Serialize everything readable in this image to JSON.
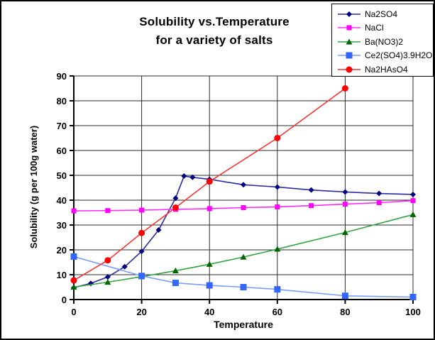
{
  "window": {
    "background_color": "#ffffff",
    "border_color": "#000000"
  },
  "chart_data": {
    "type": "line",
    "title": "Solubility vs.Temperature for a variety of salts",
    "title_lines": [
      "Solubility vs.Temperature",
      "for a variety of salts"
    ],
    "xlabel": "Temperature",
    "ylabel": "Solubility (g per 100g water)",
    "xlim": [
      0,
      100
    ],
    "ylim": [
      0,
      90
    ],
    "x_ticks": [
      0,
      20,
      40,
      60,
      80,
      100
    ],
    "y_ticks": [
      0,
      10,
      20,
      30,
      40,
      50,
      60,
      70,
      80,
      90
    ],
    "grid": true,
    "gridline_color": "#2a2a2a",
    "axis_color": "#000000",
    "legend_position": "top-right",
    "series": [
      {
        "name": "Na2SO4",
        "marker": "diamond",
        "marker_size": 8,
        "color": "#000080",
        "line_color": "#2b2b9e",
        "points": [
          [
            0,
            4.8
          ],
          [
            5,
            6.5
          ],
          [
            10,
            9.1
          ],
          [
            15,
            13.2
          ],
          [
            20,
            19.4
          ],
          [
            25,
            28.0
          ],
          [
            30,
            40.8
          ],
          [
            32.5,
            49.7
          ],
          [
            35,
            49.2
          ],
          [
            40,
            48.4
          ],
          [
            50,
            46.2
          ],
          [
            60,
            45.3
          ],
          [
            70,
            44.1
          ],
          [
            80,
            43.3
          ],
          [
            90,
            42.7
          ],
          [
            100,
            42.3
          ]
        ]
      },
      {
        "name": "NaCl",
        "marker": "square",
        "marker_size": 7,
        "color": "#ff00ff",
        "line_color": "#ff2bff",
        "points": [
          [
            0,
            35.7
          ],
          [
            10,
            35.8
          ],
          [
            20,
            36.0
          ],
          [
            30,
            36.3
          ],
          [
            40,
            36.6
          ],
          [
            50,
            37.0
          ],
          [
            60,
            37.3
          ],
          [
            70,
            37.8
          ],
          [
            80,
            38.4
          ],
          [
            90,
            39.0
          ],
          [
            100,
            39.8
          ]
        ]
      },
      {
        "name": "Ba(NO3)2",
        "marker": "triangle",
        "marker_size": 9,
        "color": "#006600",
        "line_color": "#33a343",
        "points": [
          [
            0,
            5.0
          ],
          [
            10,
            7.0
          ],
          [
            20,
            9.2
          ],
          [
            30,
            11.6
          ],
          [
            40,
            14.2
          ],
          [
            50,
            17.1
          ],
          [
            60,
            20.3
          ],
          [
            80,
            27.0
          ],
          [
            100,
            34.2
          ]
        ]
      },
      {
        "name": "Ce2(SO4)3.9H2O",
        "marker": "square",
        "marker_size": 9,
        "color": "#3366ff",
        "line_color": "#7a9cff",
        "points": [
          [
            0,
            17.3
          ],
          [
            20,
            9.5
          ],
          [
            30,
            6.7
          ],
          [
            40,
            5.7
          ],
          [
            50,
            5.0
          ],
          [
            60,
            4.1
          ],
          [
            80,
            1.5
          ],
          [
            100,
            1.0
          ]
        ]
      },
      {
        "name": "Na2HAsO4",
        "marker": "circle",
        "marker_size": 9,
        "color": "#ff0000",
        "line_color": "#ff3333",
        "points": [
          [
            0,
            7.7
          ],
          [
            10,
            15.8
          ],
          [
            20,
            26.8
          ],
          [
            30,
            37.0
          ],
          [
            40,
            47.5
          ],
          [
            60,
            65.0
          ],
          [
            80,
            85.0
          ]
        ]
      }
    ]
  }
}
